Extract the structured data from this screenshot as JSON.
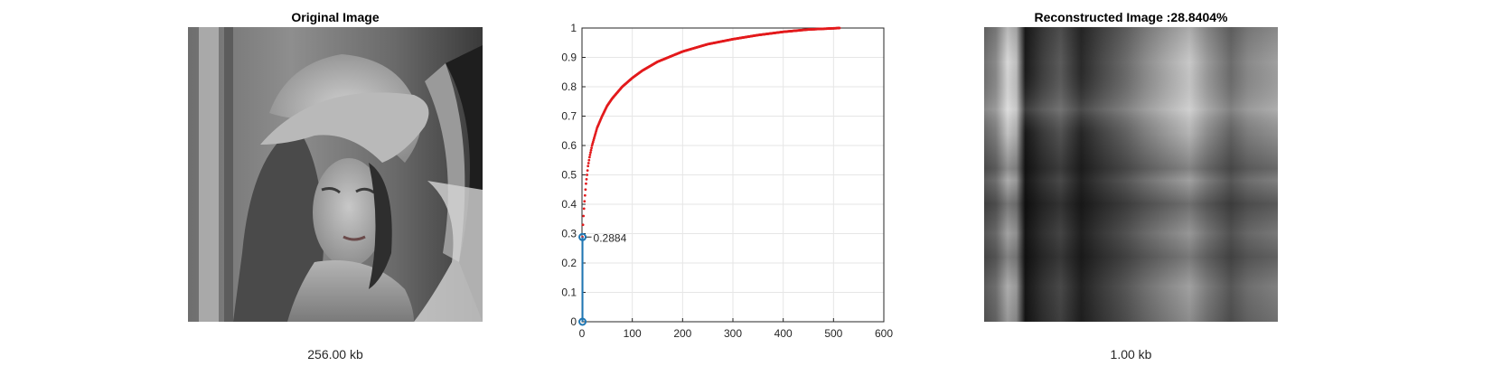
{
  "panels": {
    "left": {
      "title": "Original Image",
      "caption": "256.00 kb"
    },
    "right": {
      "title": "Reconstructed Image :28.8404%",
      "caption": "1.00 kb"
    }
  },
  "colors": {
    "curve": "#e31a1c",
    "marker": "#1f77b4",
    "grid": "#e6e6e6"
  },
  "chart_data": {
    "type": "line",
    "title": "",
    "xlabel": "",
    "ylabel": "",
    "xlim": [
      0,
      600
    ],
    "ylim": [
      0,
      1
    ],
    "xticks": [
      0,
      100,
      200,
      300,
      400,
      500,
      600
    ],
    "yticks": [
      0,
      0.1,
      0.2,
      0.3,
      0.4,
      0.5,
      0.6,
      0.7,
      0.8,
      0.9,
      1
    ],
    "grid": true,
    "series": [
      {
        "style": "red dots",
        "x": [
          1,
          2,
          3,
          4,
          5,
          6,
          8,
          10,
          12,
          15,
          20,
          25,
          30,
          40,
          50,
          60,
          80,
          100,
          120,
          150,
          200,
          250,
          300,
          350,
          400,
          450,
          500,
          512
        ],
        "y": [
          0.288,
          0.33,
          0.36,
          0.385,
          0.41,
          0.43,
          0.47,
          0.5,
          0.53,
          0.56,
          0.6,
          0.63,
          0.66,
          0.7,
          0.735,
          0.76,
          0.8,
          0.83,
          0.855,
          0.885,
          0.92,
          0.945,
          0.962,
          0.976,
          0.987,
          0.995,
          0.999,
          1.0
        ]
      },
      {
        "style": "blue line with circle markers",
        "x": [
          1,
          1
        ],
        "y": [
          0,
          0.2884
        ]
      }
    ],
    "annotations": [
      {
        "text": "0.2884",
        "x": 1,
        "y": 0.2884
      }
    ]
  }
}
